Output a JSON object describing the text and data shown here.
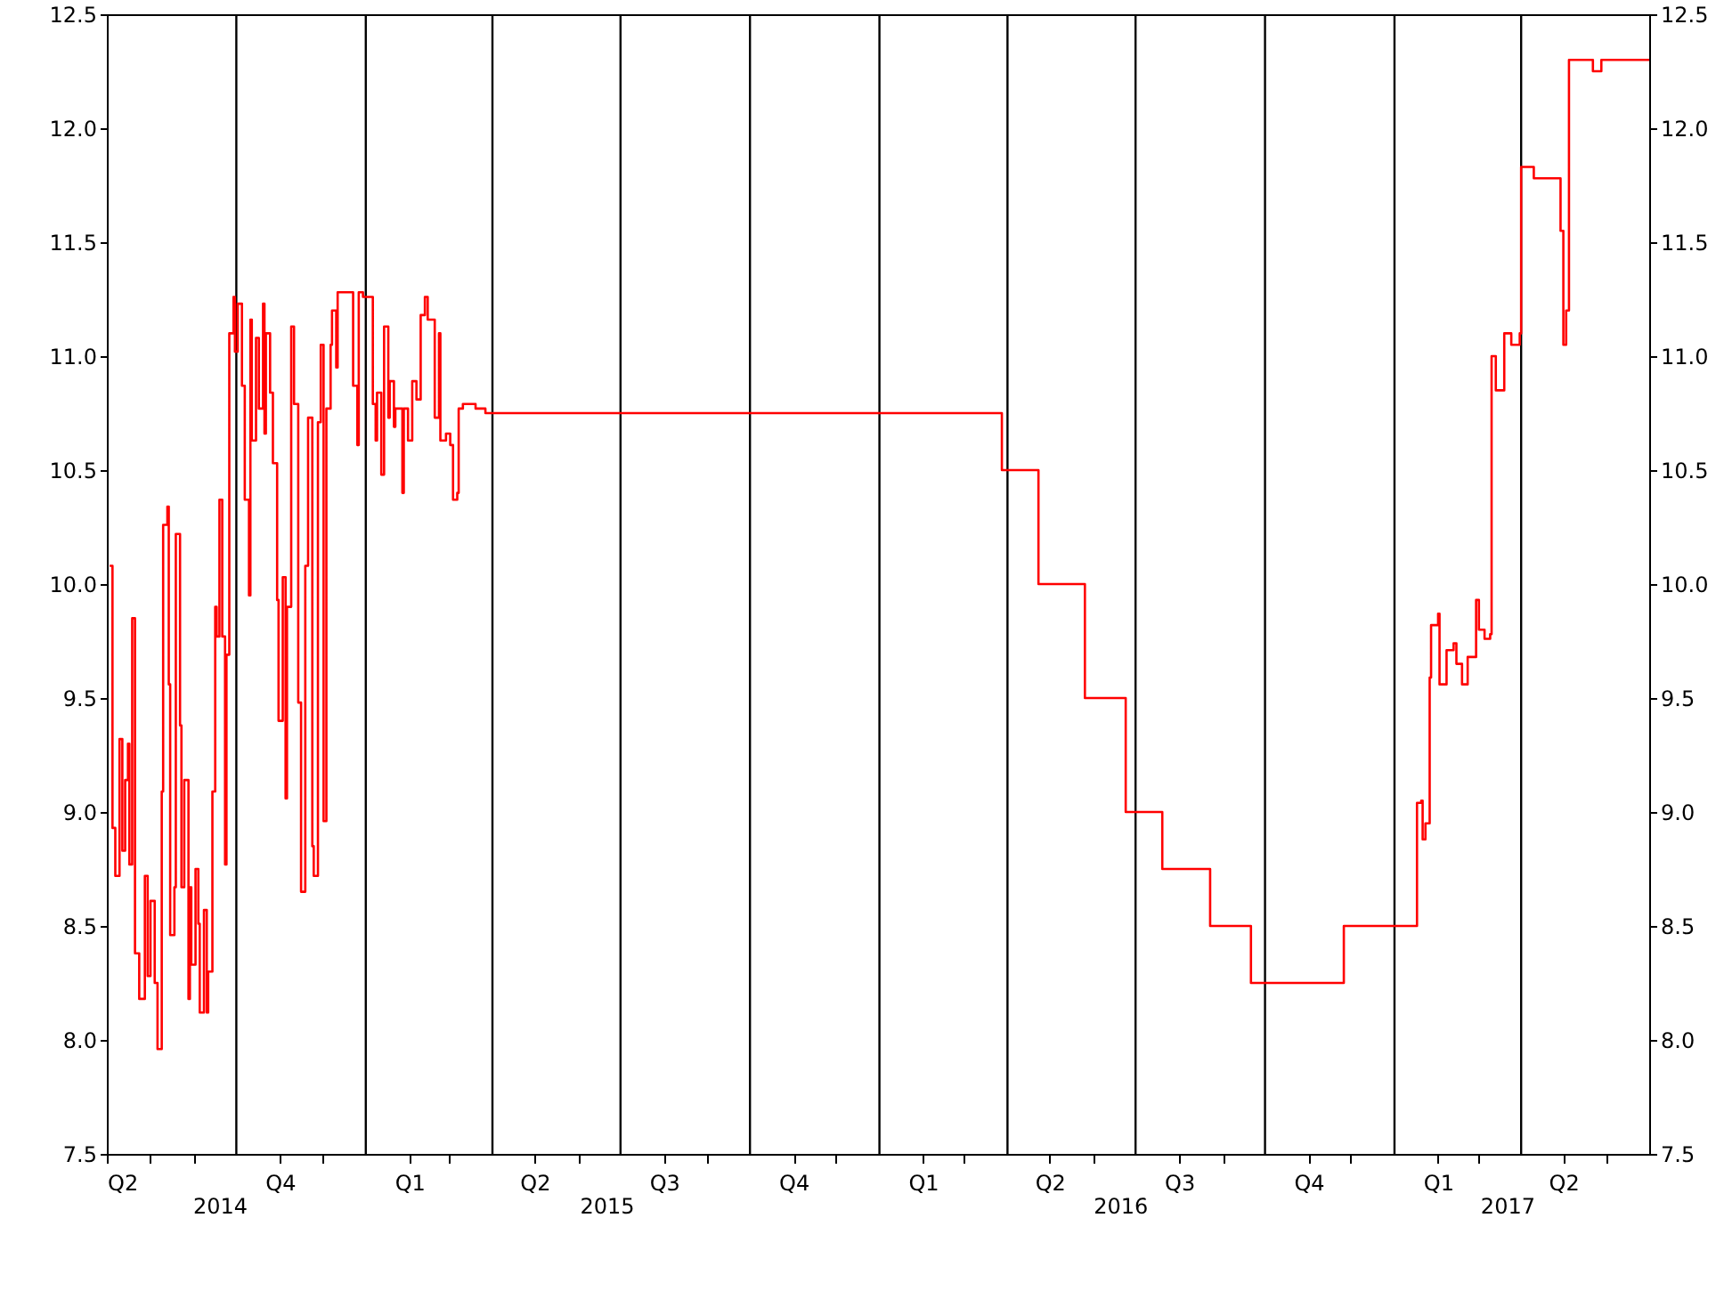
{
  "chart_data": {
    "type": "step",
    "xlim": [
      "2014-07-01",
      "2017-07-01"
    ],
    "xticks": [
      {
        "value": "2014-07-01",
        "label": "Q2"
      },
      {
        "value": "2014-08-01",
        "label": null
      },
      {
        "value": "2014-09-01",
        "label": null
      },
      {
        "value": "2014-11-01",
        "label": "Q4"
      },
      {
        "value": "2014-12-01",
        "label": null
      },
      {
        "value": "2015-02-01",
        "label": "Q1"
      },
      {
        "value": "2015-03-01",
        "label": null
      },
      {
        "value": "2015-05-01",
        "label": "Q2"
      },
      {
        "value": "2015-06-01",
        "label": null
      },
      {
        "value": "2015-08-01",
        "label": "Q3"
      },
      {
        "value": "2015-09-01",
        "label": null
      },
      {
        "value": "2015-11-01",
        "label": "Q4"
      },
      {
        "value": "2015-12-01",
        "label": null
      },
      {
        "value": "2016-02-01",
        "label": "Q1"
      },
      {
        "value": "2016-03-01",
        "label": null
      },
      {
        "value": "2016-05-01",
        "label": "Q2"
      },
      {
        "value": "2016-06-01",
        "label": null
      },
      {
        "value": "2016-08-01",
        "label": "Q3"
      },
      {
        "value": "2016-09-01",
        "label": null
      },
      {
        "value": "2016-11-01",
        "label": "Q4"
      },
      {
        "value": "2016-12-01",
        "label": null
      },
      {
        "value": "2017-02-01",
        "label": "Q1"
      },
      {
        "value": "2017-03-01",
        "label": null
      },
      {
        "value": "2017-05-01",
        "label": "Q2"
      },
      {
        "value": "2017-06-01",
        "label": null
      }
    ],
    "x2ticks": [
      {
        "value": "2014-09-19",
        "label": "2014"
      },
      {
        "value": "2015-06-21",
        "label": "2015"
      },
      {
        "value": "2016-06-20",
        "label": "2016"
      },
      {
        "value": "2017-03-22",
        "label": "2017"
      }
    ],
    "ylim": [
      7.5,
      12.5
    ],
    "yticks": [
      7.5,
      {
        "value": 8,
        "label": "8.0"
      },
      8.5,
      {
        "value": 9,
        "label": "9.0"
      },
      9.5,
      {
        "value": 10,
        "label": "10.0"
      },
      10.5,
      {
        "value": 11,
        "label": "11.0"
      },
      11.5,
      {
        "value": 12,
        "label": "12.0"
      },
      12.5
    ],
    "y2lim": [
      7.5,
      12.5
    ],
    "y2ticks": [
      7.5,
      {
        "value": 8,
        "label": "8.0"
      },
      8.5,
      {
        "value": 9,
        "label": "9.0"
      },
      9.5,
      {
        "value": 10,
        "label": "10.0"
      },
      10.5,
      {
        "value": 11,
        "label": "11.0"
      },
      11.5,
      {
        "value": 12,
        "label": "12.0"
      },
      12.5
    ],
    "x2lim": [
      "2014-07-01",
      "2017-07-01"
    ],
    "ref_lines": [
      {
        "axis": "x",
        "value": "2014-10-01",
        "color": "#000000"
      },
      {
        "axis": "x",
        "value": "2015-01-01",
        "color": "#000000"
      },
      {
        "axis": "x",
        "value": "2015-04-01",
        "color": "#000000"
      },
      {
        "axis": "x",
        "value": "2015-07-01",
        "color": "#000000"
      },
      {
        "axis": "x",
        "value": "2015-10-01",
        "color": "#000000"
      },
      {
        "axis": "x",
        "value": "2016-01-01",
        "color": "#000000"
      },
      {
        "axis": "x",
        "value": "2016-04-01",
        "color": "#000000"
      },
      {
        "axis": "x",
        "value": "2016-07-01",
        "color": "#000000"
      },
      {
        "axis": "x",
        "value": "2016-10-01",
        "color": "#000000"
      },
      {
        "axis": "x",
        "value": "2017-01-01",
        "color": "#000000"
      },
      {
        "axis": "x",
        "value": "2017-04-01",
        "color": "#000000"
      }
    ],
    "line_style": "solid",
    "series": [
      {
        "color": "#ff0000",
        "x": [
          "2014-07-03",
          "2014-07-05",
          "2014-07-07",
          "2014-07-10",
          "2014-07-12",
          "2014-07-14",
          "2014-07-16",
          "2014-07-17",
          "2014-07-19",
          "2014-07-21",
          "2014-07-24",
          "2014-07-28",
          "2014-07-30",
          "2014-08-01",
          "2014-08-04",
          "2014-08-06",
          "2014-08-09",
          "2014-08-10",
          "2014-08-13",
          "2014-08-14",
          "2014-08-15",
          "2014-08-18",
          "2014-08-19",
          "2014-08-22",
          "2014-08-23",
          "2014-08-25",
          "2014-08-28",
          "2014-08-29",
          "2014-08-30",
          "2014-09-02",
          "2014-09-04",
          "2014-09-05",
          "2014-09-08",
          "2014-09-10",
          "2014-09-11",
          "2014-09-14",
          "2014-09-16",
          "2014-09-17",
          "2014-09-19",
          "2014-09-21",
          "2014-09-23",
          "2014-09-24",
          "2014-09-26",
          "2014-09-29",
          "2014-09-30",
          "2014-10-02",
          "2014-10-05",
          "2014-10-07",
          "2014-10-10",
          "2014-10-11",
          "2014-10-12",
          "2014-10-15",
          "2014-10-17",
          "2014-10-20",
          "2014-10-21",
          "2014-10-22",
          "2014-10-25",
          "2014-10-27",
          "2014-10-30",
          "2014-10-31",
          "2014-11-03",
          "2014-11-05",
          "2014-11-06",
          "2014-11-09",
          "2014-11-11",
          "2014-11-14",
          "2014-11-16",
          "2014-11-19",
          "2014-11-21",
          "2014-11-24",
          "2014-11-25",
          "2014-11-28",
          "2014-11-30",
          "2014-12-02",
          "2014-12-04",
          "2014-12-07",
          "2014-12-08",
          "2014-12-11",
          "2014-12-12",
          "2014-12-17",
          "2014-12-21",
          "2014-12-23",
          "2014-12-26",
          "2014-12-27",
          "2014-12-30",
          "2015-01-03",
          "2015-01-06",
          "2015-01-08",
          "2015-01-09",
          "2015-01-12",
          "2015-01-14",
          "2015-01-17",
          "2015-01-18",
          "2015-01-21",
          "2015-01-22",
          "2015-01-27",
          "2015-01-28",
          "2015-01-31",
          "2015-02-03",
          "2015-02-06",
          "2015-02-09",
          "2015-02-12",
          "2015-02-14",
          "2015-02-17",
          "2015-02-19",
          "2015-02-22",
          "2015-02-23",
          "2015-02-27",
          "2015-03-02",
          "2015-03-04",
          "2015-03-07",
          "2015-03-08",
          "2015-03-11",
          "2015-03-20",
          "2015-03-27",
          "2016-03-26",
          "2016-03-28",
          "2016-04-23",
          "2016-05-26",
          "2016-06-24",
          "2016-07-20",
          "2016-08-23",
          "2016-09-21",
          "2016-11-26",
          "2017-01-17",
          "2017-01-20",
          "2017-01-21",
          "2017-01-23",
          "2017-01-26",
          "2017-01-27",
          "2017-02-01",
          "2017-02-02",
          "2017-02-07",
          "2017-02-12",
          "2017-02-14",
          "2017-02-18",
          "2017-02-22",
          "2017-02-28",
          "2017-03-02",
          "2017-03-06",
          "2017-03-10",
          "2017-03-11",
          "2017-03-14",
          "2017-03-20",
          "2017-03-25",
          "2017-03-31",
          "2017-04-01",
          "2017-04-10",
          "2017-04-27",
          "2017-04-29",
          "2017-05-01",
          "2017-05-03",
          "2017-05-05",
          "2017-05-22",
          "2017-05-28",
          "2017-07-01"
        ],
        "values": [
          10.08,
          8.93,
          8.72,
          9.32,
          8.83,
          9.14,
          9.3,
          8.77,
          9.85,
          8.38,
          8.18,
          8.72,
          8.28,
          8.61,
          8.25,
          7.96,
          9.09,
          10.26,
          10.34,
          9.56,
          8.46,
          8.67,
          10.22,
          9.38,
          8.67,
          9.14,
          8.18,
          8.67,
          8.33,
          8.75,
          8.51,
          8.12,
          8.57,
          8.12,
          8.3,
          9.09,
          9.9,
          9.77,
          10.37,
          9.77,
          8.77,
          9.69,
          11.1,
          11.26,
          11.02,
          11.23,
          10.87,
          10.37,
          9.95,
          11.16,
          10.63,
          11.08,
          10.77,
          11.23,
          10.66,
          11.1,
          10.84,
          10.53,
          9.93,
          9.4,
          10.03,
          9.06,
          9.9,
          11.13,
          10.79,
          9.48,
          8.65,
          10.08,
          10.73,
          8.85,
          8.72,
          10.71,
          11.05,
          8.96,
          10.77,
          11.05,
          11.2,
          10.95,
          11.28,
          11.28,
          11.28,
          10.87,
          10.61,
          11.28,
          11.26,
          11.26,
          10.79,
          10.63,
          10.84,
          10.48,
          11.13,
          10.73,
          10.89,
          10.69,
          10.77,
          10.4,
          10.77,
          10.63,
          10.89,
          10.81,
          11.18,
          11.26,
          11.16,
          11.16,
          10.73,
          11.1,
          10.63,
          10.66,
          10.61,
          10.37,
          10.4,
          10.77,
          10.79,
          10.77,
          10.75,
          10.75,
          10.5,
          10.0,
          9.5,
          9.0,
          8.75,
          8.5,
          8.25,
          8.5,
          9.04,
          9.05,
          8.88,
          8.95,
          9.59,
          9.82,
          9.87,
          9.56,
          9.71,
          9.74,
          9.65,
          9.56,
          9.68,
          9.93,
          9.8,
          9.76,
          9.78,
          11.0,
          10.85,
          11.1,
          11.05,
          11.1,
          11.83,
          11.78,
          11.78,
          11.55,
          11.05,
          11.2,
          12.3,
          12.25,
          12.3,
          12.3
        ]
      }
    ]
  }
}
